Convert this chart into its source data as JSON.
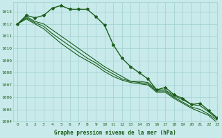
{
  "x": [
    0,
    1,
    2,
    3,
    4,
    5,
    6,
    7,
    8,
    9,
    10,
    11,
    12,
    13,
    14,
    15,
    16,
    17,
    18,
    19,
    20,
    21,
    22,
    23
  ],
  "series": [
    {
      "values": [
        1012.0,
        1012.7,
        1012.5,
        1012.7,
        1013.3,
        1013.5,
        1013.2,
        1013.2,
        1013.2,
        1012.6,
        1011.9,
        1010.3,
        1009.2,
        1008.5,
        1008.0,
        1007.5,
        1006.6,
        1006.8,
        1006.2,
        1005.9,
        1005.4,
        1005.5,
        1004.9,
        1004.3
      ],
      "marker": true,
      "linewidth": 1.0
    },
    {
      "values": [
        1012.0,
        1012.6,
        1012.2,
        1012.0,
        1011.5,
        1011.0,
        1010.5,
        1010.0,
        1009.5,
        1009.0,
        1008.5,
        1008.1,
        1007.7,
        1007.3,
        1007.3,
        1007.2,
        1006.6,
        1006.6,
        1006.1,
        1005.8,
        1005.4,
        1005.3,
        1004.8,
        1004.2
      ],
      "marker": false,
      "linewidth": 0.8
    },
    {
      "values": [
        1012.0,
        1012.5,
        1012.1,
        1011.8,
        1011.2,
        1010.7,
        1010.2,
        1009.7,
        1009.2,
        1008.8,
        1008.3,
        1007.9,
        1007.5,
        1007.3,
        1007.2,
        1007.1,
        1006.5,
        1006.5,
        1006.0,
        1005.6,
        1005.2,
        1005.0,
        1004.6,
        1004.1
      ],
      "marker": false,
      "linewidth": 0.8
    },
    {
      "values": [
        1012.0,
        1012.4,
        1012.0,
        1011.6,
        1011.0,
        1010.4,
        1009.9,
        1009.4,
        1009.0,
        1008.6,
        1008.1,
        1007.7,
        1007.4,
        1007.2,
        1007.1,
        1007.0,
        1006.4,
        1006.4,
        1005.9,
        1005.5,
        1005.1,
        1004.8,
        1004.5,
        1003.9
      ],
      "marker": false,
      "linewidth": 0.8
    }
  ],
  "line_color": "#1a5c1a",
  "marker_color": "#1a5c1a",
  "bg_color": "#c8eaea",
  "grid_color": "#a0d0d0",
  "text_color": "#1a5c1a",
  "xlabel": "Graphe pression niveau de la mer (hPa)",
  "ylim": [
    1004,
    1013.8
  ],
  "xlim": [
    -0.5,
    23
  ],
  "yticks": [
    1004,
    1005,
    1006,
    1007,
    1008,
    1009,
    1010,
    1011,
    1012,
    1013
  ],
  "xticks": [
    0,
    1,
    2,
    3,
    4,
    5,
    6,
    7,
    8,
    9,
    10,
    11,
    12,
    13,
    14,
    15,
    16,
    17,
    18,
    19,
    20,
    21,
    22,
    23
  ]
}
